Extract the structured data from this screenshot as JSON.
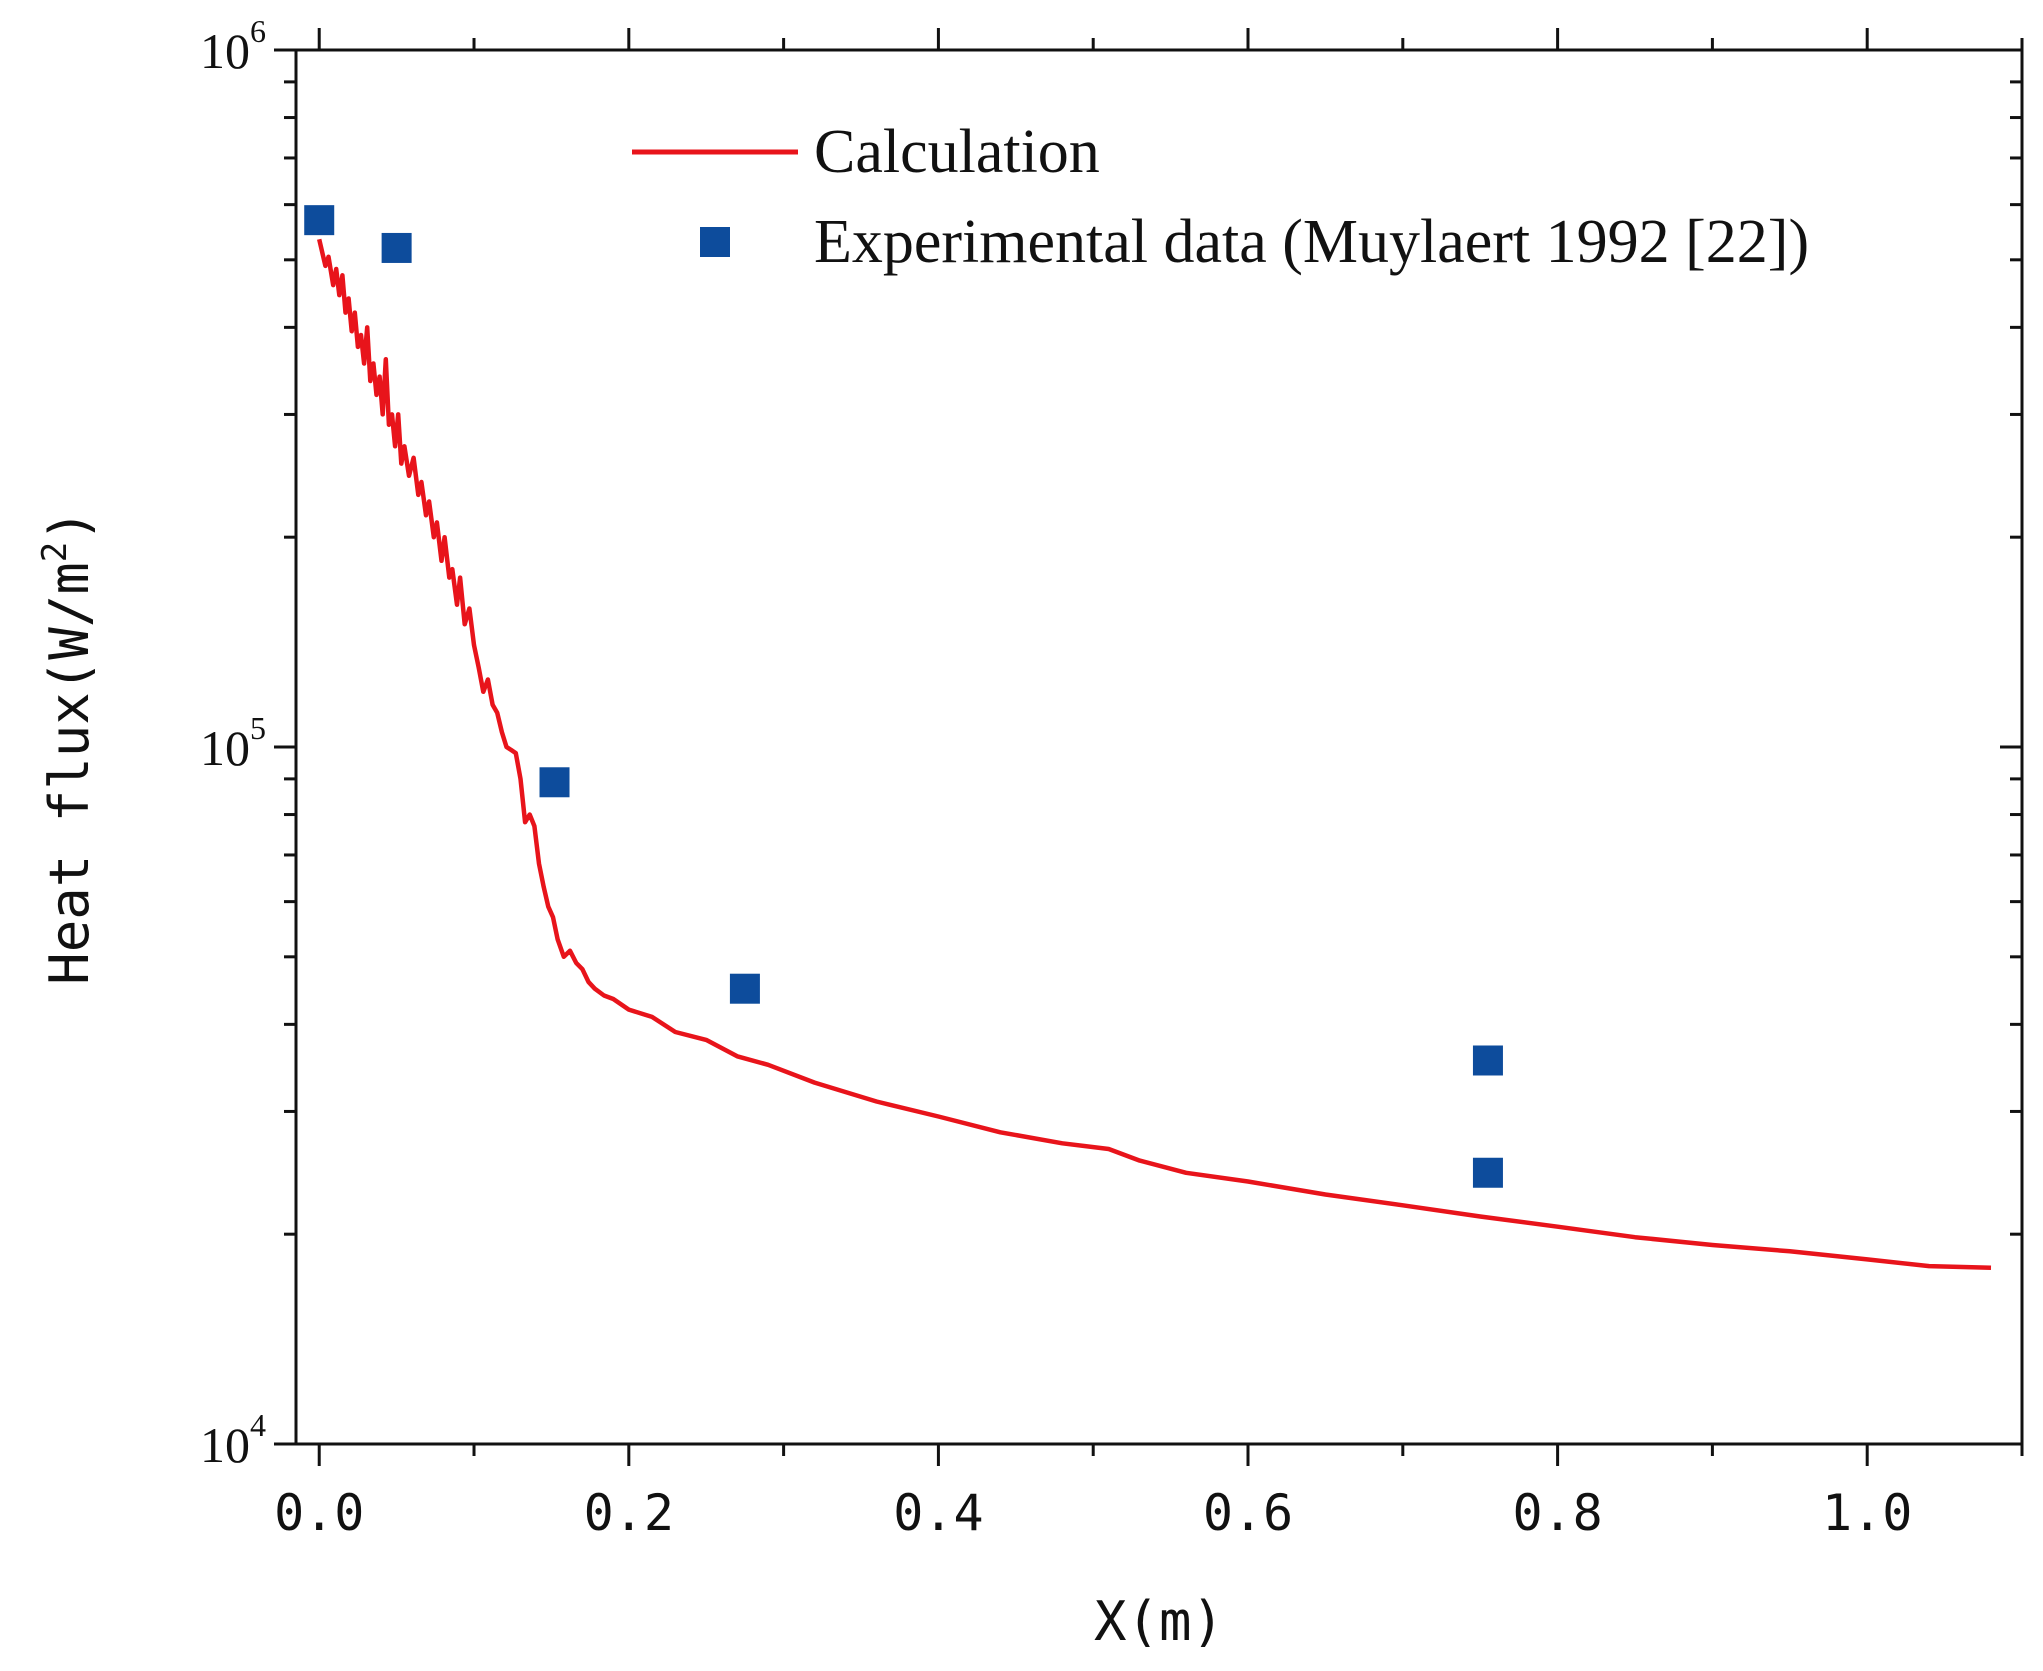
{
  "chart_data": {
    "type": "line",
    "title": "",
    "xlabel": "X(m)",
    "ylabel": "Heat flux(W/m²)",
    "ylabel_parts": {
      "main": "Heat flux(W/m",
      "sup": "2",
      "close": ")"
    },
    "xlim": [
      -0.015,
      1.1
    ],
    "ylim": [
      10000,
      1000000
    ],
    "yscale": "log",
    "grid": false,
    "legend_position": "top-right",
    "x_ticks": [
      0.0,
      0.2,
      0.4,
      0.6,
      0.8,
      1.0
    ],
    "x_tick_labels": [
      "0.0",
      "0.2",
      "0.4",
      "0.6",
      "0.8",
      "1.0"
    ],
    "y_ticks": [
      {
        "value": 10000,
        "base": "10",
        "exp": "4"
      },
      {
        "value": 100000,
        "base": "10",
        "exp": "5"
      },
      {
        "value": 1000000,
        "base": "10",
        "exp": "6"
      }
    ],
    "series": [
      {
        "name": "Calculation",
        "style": "line",
        "color": "#e8141b",
        "x": [
          0.0,
          0.004,
          0.006,
          0.009,
          0.011,
          0.013,
          0.015,
          0.017,
          0.019,
          0.021,
          0.023,
          0.025,
          0.027,
          0.029,
          0.031,
          0.033,
          0.035,
          0.037,
          0.039,
          0.041,
          0.043,
          0.045,
          0.047,
          0.049,
          0.051,
          0.053,
          0.055,
          0.058,
          0.061,
          0.064,
          0.066,
          0.069,
          0.071,
          0.074,
          0.076,
          0.079,
          0.081,
          0.084,
          0.086,
          0.089,
          0.091,
          0.094,
          0.097,
          0.1,
          0.103,
          0.106,
          0.109,
          0.112,
          0.115,
          0.118,
          0.121,
          0.124,
          0.127,
          0.13,
          0.133,
          0.136,
          0.139,
          0.142,
          0.145,
          0.148,
          0.151,
          0.154,
          0.158,
          0.162,
          0.166,
          0.17,
          0.174,
          0.178,
          0.184,
          0.19,
          0.2,
          0.215,
          0.23,
          0.25,
          0.27,
          0.29,
          0.32,
          0.36,
          0.4,
          0.44,
          0.48,
          0.51,
          0.53,
          0.56,
          0.6,
          0.65,
          0.7,
          0.75,
          0.8,
          0.85,
          0.9,
          0.95,
          1.0,
          1.04,
          1.08
        ],
        "y": [
          535000,
          490000,
          505000,
          460000,
          485000,
          445000,
          475000,
          420000,
          440000,
          395000,
          420000,
          375000,
          390000,
          355000,
          400000,
          335000,
          355000,
          320000,
          340000,
          300000,
          360000,
          290000,
          300000,
          270000,
          300000,
          255000,
          270000,
          245000,
          260000,
          230000,
          240000,
          215000,
          225000,
          200000,
          210000,
          185000,
          200000,
          175000,
          180000,
          160000,
          175000,
          150000,
          158000,
          140000,
          130000,
          120000,
          125000,
          115000,
          112000,
          105000,
          100000,
          99000,
          98000,
          90000,
          78000,
          80000,
          77000,
          68000,
          63000,
          59000,
          57000,
          53000,
          50000,
          51000,
          49000,
          48000,
          46000,
          45000,
          44000,
          43500,
          42000,
          41000,
          39000,
          38000,
          36000,
          35000,
          33000,
          31000,
          29500,
          28000,
          27000,
          26500,
          25500,
          24500,
          23800,
          22800,
          22000,
          21200,
          20500,
          19800,
          19300,
          18900,
          18400,
          18000,
          17900
        ]
      },
      {
        "name": "Experimental data (Muylaert 1992 [22])",
        "style": "square-marker",
        "color": "#0d4c9c",
        "x": [
          0.0,
          0.05,
          0.152,
          0.275,
          0.755,
          0.755
        ],
        "y": [
          570000,
          520000,
          89000,
          45000,
          35500,
          24500
        ]
      }
    ]
  }
}
